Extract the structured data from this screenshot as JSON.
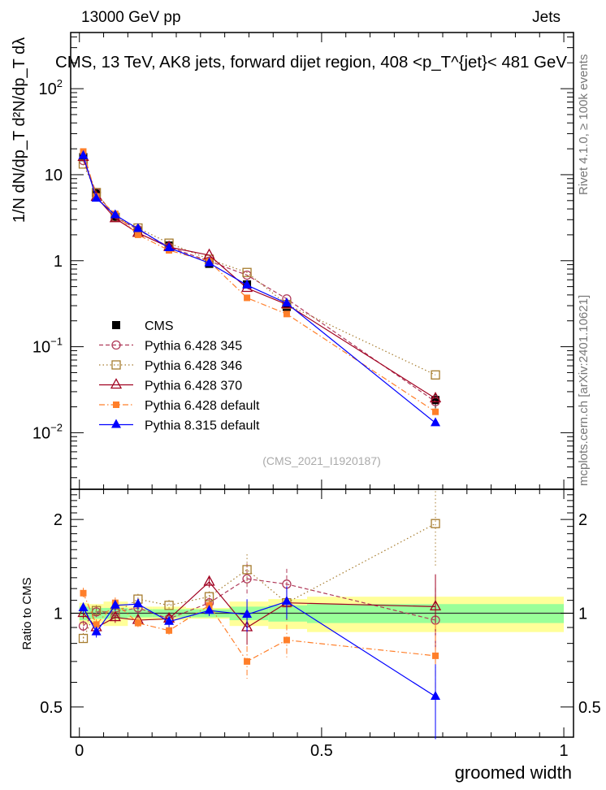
{
  "header": {
    "left": "13000 GeV pp",
    "right": "Jets"
  },
  "side_text": {
    "rivet": "Rivet 4.1.0, ≥ 100k events",
    "mcplots": "mcplots.cern.ch [arXiv:2401.10621]"
  },
  "watermark": "(CMS_2021_I1920187)",
  "chart_data": [
    {
      "type": "line",
      "panel": "main",
      "title": "CMS, 13 TeV, AK8 jets, forward dijet region, 408 <p_T^{jet}< 481 GeV",
      "title_parts": {
        "pre": "CMS, 13 TeV, AK8 jets, forward dijet region, 408 <p",
        "sup": "{jet}",
        "sub": "T",
        "post": "}< 481 GeV"
      },
      "ylabel": "1/N dN/dp_T d²N/dp_T dλ",
      "ylabel_parts": {
        "a": "1",
        "b": "d N / d p",
        "c": "T",
        "d": "d²N",
        "e": "d p",
        "f": "T",
        "g": "d λ"
      },
      "xlabel": "groomed width",
      "yscale": "log",
      "xlim": [
        -0.018,
        1.02
      ],
      "ylim": [
        0.0022,
        450
      ],
      "yticks": [
        {
          "v": 0.01,
          "label": "10",
          "exp": "−2"
        },
        {
          "v": 0.1,
          "label": "10",
          "exp": "−1"
        },
        {
          "v": 1,
          "label": "1",
          "exp": ""
        },
        {
          "v": 10,
          "label": "10",
          "exp": ""
        },
        {
          "v": 100,
          "label": "10",
          "exp": "2"
        }
      ],
      "x": [
        0.008,
        0.035,
        0.074,
        0.121,
        0.185,
        0.268,
        0.346,
        0.428,
        0.735
      ],
      "series": [
        {
          "name": "CMS",
          "color": "#000000",
          "marker": "square-filled",
          "style": "none",
          "values": [
            16,
            6.1,
            3.2,
            2.2,
            1.5,
            0.92,
            0.53,
            0.29,
            0.024
          ],
          "err_frac": [
            0.08,
            0.06,
            0.05,
            0.05,
            0.05,
            0.06,
            0.08,
            0.1,
            0.2
          ]
        },
        {
          "name": "Pythia 6.428 345",
          "color": "#b03a5a",
          "marker": "circle-open",
          "style": "dashed",
          "values": [
            14.6,
            6.2,
            3.2,
            2.3,
            1.44,
            0.99,
            0.68,
            0.36,
            0.023
          ]
        },
        {
          "name": "Pythia 6.428 346",
          "color": "#a67c2e",
          "marker": "square-open",
          "style": "dotted",
          "values": [
            13.3,
            6.2,
            3.2,
            2.4,
            1.6,
            1.04,
            0.73,
            0.31,
            0.047
          ]
        },
        {
          "name": "Pythia 6.428 370",
          "color": "#a00020",
          "marker": "triangle-open",
          "style": "solid",
          "values": [
            16,
            5.5,
            3.1,
            2.1,
            1.44,
            1.16,
            0.48,
            0.31,
            0.025
          ]
        },
        {
          "name": "Pythia 6.428 default",
          "color": "#ff7f2a",
          "marker": "square-filled-small",
          "style": "dashdot",
          "values": [
            18.6,
            5.6,
            3.5,
            2.0,
            1.32,
            0.98,
            0.37,
            0.24,
            0.0175
          ]
        },
        {
          "name": "Pythia 8.315 default",
          "color": "#0000ff",
          "marker": "triangle-filled",
          "style": "solid",
          "values": [
            16.6,
            5.3,
            3.4,
            2.35,
            1.41,
            0.94,
            0.52,
            0.32,
            0.013
          ]
        }
      ],
      "legend_position": "lower-left"
    },
    {
      "type": "line",
      "panel": "ratio",
      "ylabel": "Ratio to CMS",
      "xlabel": "groomed width",
      "yscale": "log",
      "ylim": [
        0.4,
        2.5
      ],
      "xlim": [
        -0.018,
        1.02
      ],
      "yticks": [
        {
          "v": 0.5,
          "label": "0.5"
        },
        {
          "v": 1,
          "label": "1"
        },
        {
          "v": 2,
          "label": "2"
        }
      ],
      "xticks": [
        {
          "v": 0,
          "label": "0"
        },
        {
          "v": 0.5,
          "label": "0.5"
        },
        {
          "v": 1,
          "label": "1"
        }
      ],
      "band_edges": [
        0,
        0.02,
        0.05,
        0.1,
        0.15,
        0.22,
        0.31,
        0.39,
        0.47,
        1.0
      ],
      "band_stat": [
        0.05,
        0.04,
        0.04,
        0.03,
        0.03,
        0.03,
        0.05,
        0.06,
        0.07
      ],
      "band_total": [
        0.08,
        0.07,
        0.09,
        0.05,
        0.05,
        0.04,
        0.09,
        0.11,
        0.13
      ],
      "x": [
        0.008,
        0.035,
        0.074,
        0.121,
        0.185,
        0.268,
        0.346,
        0.428,
        0.735
      ],
      "series": [
        {
          "name": "Pythia 6.428 345",
          "values": [
            0.91,
            1.01,
            1.01,
            1.04,
            0.96,
            1.08,
            1.29,
            1.24,
            0.95
          ]
        },
        {
          "name": "Pythia 6.428 346",
          "values": [
            0.83,
            1.02,
            1.0,
            1.11,
            1.06,
            1.13,
            1.38,
            1.08,
            1.94
          ]
        },
        {
          "name": "Pythia 6.428 370",
          "values": [
            1.0,
            0.9,
            0.97,
            0.95,
            0.96,
            1.26,
            0.9,
            1.08,
            1.05
          ]
        },
        {
          "name": "Pythia 6.428 default",
          "values": [
            1.16,
            0.92,
            1.08,
            0.93,
            0.88,
            1.06,
            0.7,
            0.82,
            0.73
          ]
        },
        {
          "name": "Pythia 8.315 default",
          "values": [
            1.04,
            0.87,
            1.06,
            1.07,
            0.94,
            1.02,
            0.99,
            1.09,
            0.54
          ]
        }
      ]
    }
  ]
}
